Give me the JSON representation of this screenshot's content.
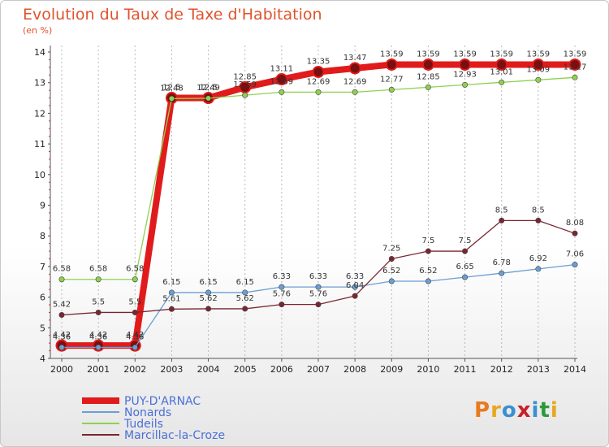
{
  "header": {
    "title": "Evolution du Taux de Taxe d'Habitation",
    "subtitle": "(en %)"
  },
  "logo": {
    "letters": [
      "P",
      "r",
      "o",
      "x",
      "i",
      "t",
      "i"
    ],
    "colors": [
      "#e87a1e",
      "#e8a71e",
      "#3a8fd0",
      "#c8202a",
      "#3a8fd0",
      "#2c9a3c",
      "#e8a71e"
    ]
  },
  "chart_data": {
    "type": "line",
    "title": "Evolution du Taux de Taxe d'Habitation",
    "ylabel": "(en %)",
    "xlabel": "",
    "x": [
      "2000",
      "2001",
      "2002",
      "2003",
      "2004",
      "2005",
      "2006",
      "2007",
      "2008",
      "2009",
      "2010",
      "2011",
      "2012",
      "2013",
      "2014"
    ],
    "ylim": [
      4,
      14
    ],
    "yticks": [
      "4",
      "5",
      "6",
      "7",
      "8",
      "9",
      "10",
      "11",
      "12",
      "13",
      "14"
    ],
    "grid": "vertical dashed",
    "legend": "bottom",
    "series": [
      {
        "name": "PUY-D'ARNAC",
        "color": "#e11b1b",
        "values": [
          4.42,
          4.42,
          4.42,
          12.5,
          12.5,
          12.85,
          13.11,
          13.35,
          13.47,
          13.59,
          13.59,
          13.59,
          13.59,
          13.59,
          13.59
        ],
        "labels": [
          "4.42",
          "4.42",
          "4.42",
          "12.5",
          "12.5",
          "12.85",
          "13.11",
          "13.35",
          "13.47",
          "13.59",
          "13.59",
          "13.59",
          "13.59",
          "13.59",
          "13.59"
        ]
      },
      {
        "name": "Nonards",
        "color": "#6a9fd4",
        "values": [
          4.36,
          4.36,
          4.36,
          6.15,
          6.15,
          6.15,
          6.33,
          6.33,
          6.33,
          6.52,
          6.52,
          6.65,
          6.78,
          6.92,
          7.06
        ],
        "labels": [
          "4.36",
          "4.36",
          "4.36",
          "6.15",
          "6.15",
          "6.15",
          "6.33",
          "6.33",
          "6.33",
          "6.52",
          "6.52",
          "6.65",
          "6.78",
          "6.92",
          "7.06"
        ]
      },
      {
        "name": "Tudeils",
        "color": "#8fd14f",
        "values": [
          6.58,
          6.58,
          6.58,
          12.48,
          12.49,
          12.59,
          12.69,
          12.69,
          12.69,
          12.77,
          12.85,
          12.93,
          13.01,
          13.09,
          13.17
        ],
        "labels": [
          "6.58",
          "6.58",
          "6.58",
          "12.48",
          "12.49",
          "12.59",
          "12.69",
          "12.69",
          "12.69",
          "12.77",
          "12.85",
          "12.93",
          "13.01",
          "13.09",
          "13.17"
        ]
      },
      {
        "name": "Marcillac-la-Croze",
        "color": "#7a2630",
        "values": [
          5.42,
          5.5,
          5.5,
          5.61,
          5.62,
          5.62,
          5.76,
          5.76,
          6.04,
          7.25,
          7.5,
          7.5,
          8.5,
          8.5,
          8.08
        ],
        "labels": [
          "5.42",
          "5.5",
          "5.5",
          "5.61",
          "5.62",
          "5.62",
          "5.76",
          "5.76",
          "6.04",
          "7.25",
          "7.5",
          "7.5",
          "8.5",
          "8.5",
          "8.08"
        ]
      }
    ]
  }
}
